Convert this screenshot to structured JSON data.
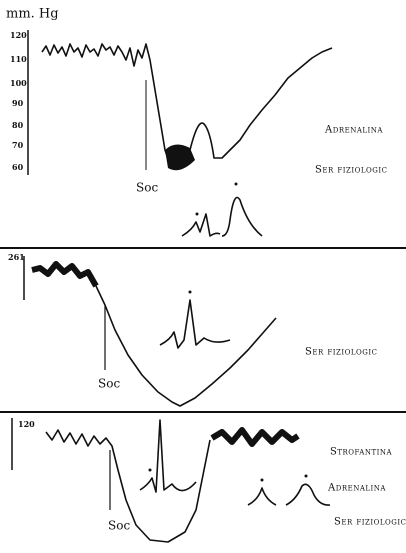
{
  "panels": [
    {
      "unit": "mm. Hg",
      "ticks": [
        "120",
        "110",
        "100",
        "90",
        "80",
        "70",
        "60"
      ],
      "marker": "Soc",
      "labels": [
        "Adrenalina",
        "Ser fiziologic"
      ]
    },
    {
      "ticks": [
        "261"
      ],
      "marker": "Soc",
      "labels": [
        "Ser fiziologic"
      ]
    },
    {
      "ticks": [
        "120"
      ],
      "marker": "Soc",
      "labels": [
        "Strofantina",
        "Adrenalina",
        "Ser fiziologic"
      ]
    }
  ]
}
